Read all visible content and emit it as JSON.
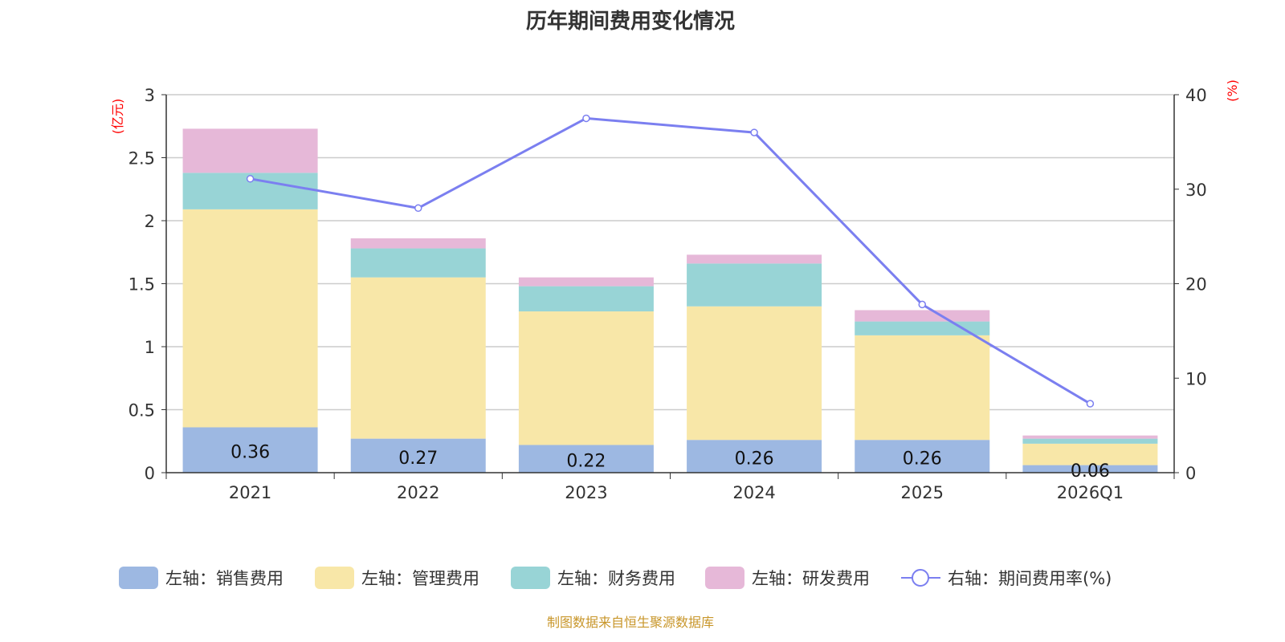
{
  "chart_data": {
    "type": "bar",
    "stacked": true,
    "title": "历年期间费用变化情况",
    "source": "制图数据来自恒生聚源数据库",
    "categories": [
      "2021",
      "2022",
      "2023",
      "2024",
      "2025",
      "2026Q1"
    ],
    "left_axis": {
      "unit": "(亿元)",
      "ylim": [
        0,
        3
      ],
      "ticks": [
        "0",
        "0.5",
        "1",
        "1.5",
        "2",
        "2.5",
        "3"
      ]
    },
    "right_axis": {
      "unit": "(%)",
      "ylim": [
        0,
        40
      ],
      "ticks": [
        "0",
        "10",
        "20",
        "30",
        "40"
      ]
    },
    "grid": true,
    "legend_placement": "bottom",
    "series": [
      {
        "name": "左轴：销售费用",
        "color": "#9db8e2",
        "values": [
          0.36,
          0.27,
          0.22,
          0.26,
          0.26,
          0.06
        ],
        "labels": [
          "0.36",
          "0.27",
          "0.22",
          "0.26",
          "0.26",
          "0.06"
        ]
      },
      {
        "name": "左轴：管理费用",
        "color": "#f8e7a8",
        "values": [
          1.73,
          1.28,
          1.06,
          1.06,
          0.83,
          0.17
        ]
      },
      {
        "name": "左轴：财务费用",
        "color": "#98d4d6",
        "values": [
          0.29,
          0.23,
          0.2,
          0.34,
          0.11,
          0.04
        ]
      },
      {
        "name": "左轴：研发费用",
        "color": "#e6b8d8",
        "values": [
          0.35,
          0.08,
          0.07,
          0.07,
          0.09,
          0.025
        ]
      }
    ],
    "line": {
      "name": "右轴：期间费用率(%)",
      "color": "#7b7ff0",
      "values": [
        31.1,
        28.0,
        37.5,
        36.0,
        17.8,
        7.3
      ]
    }
  }
}
